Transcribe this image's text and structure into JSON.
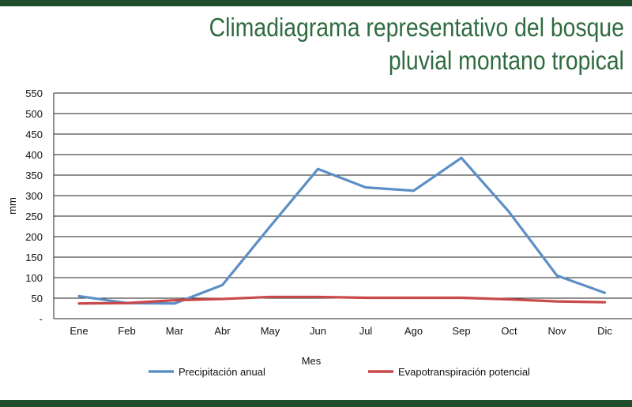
{
  "title": "Climadiagrama representativo del bosque pluvial montano tropical",
  "colors": {
    "band": "#1f4e2c",
    "title": "#2f6b3f",
    "precipitation": "#5b8fc6",
    "evapotranspiration": "#c9494a",
    "grid": "#222222"
  },
  "chart_data": {
    "type": "line",
    "title": "Climadiagrama representativo del bosque pluvial montano tropical",
    "xlabel": "Mes",
    "ylabel": "mm",
    "ylim": [
      0,
      550
    ],
    "yticks": [
      "-",
      "50",
      "100",
      "150",
      "200",
      "250",
      "300",
      "350",
      "400",
      "450",
      "500",
      "550"
    ],
    "grid": true,
    "legend_position": "bottom",
    "categories": [
      "Ene",
      "Feb",
      "Mar",
      "Abr",
      "May",
      "Jun",
      "Jul",
      "Ago",
      "Sep",
      "Oct",
      "Nov",
      "Dic"
    ],
    "series": [
      {
        "name": "Precipitación anual",
        "values": [
          55,
          38,
          37,
          82,
          225,
          365,
          320,
          312,
          392,
          260,
          105,
          63
        ]
      },
      {
        "name": "Evapotranspiración potencial",
        "values": [
          37,
          38,
          45,
          48,
          53,
          53,
          51,
          51,
          51,
          47,
          42,
          40
        ]
      }
    ]
  }
}
